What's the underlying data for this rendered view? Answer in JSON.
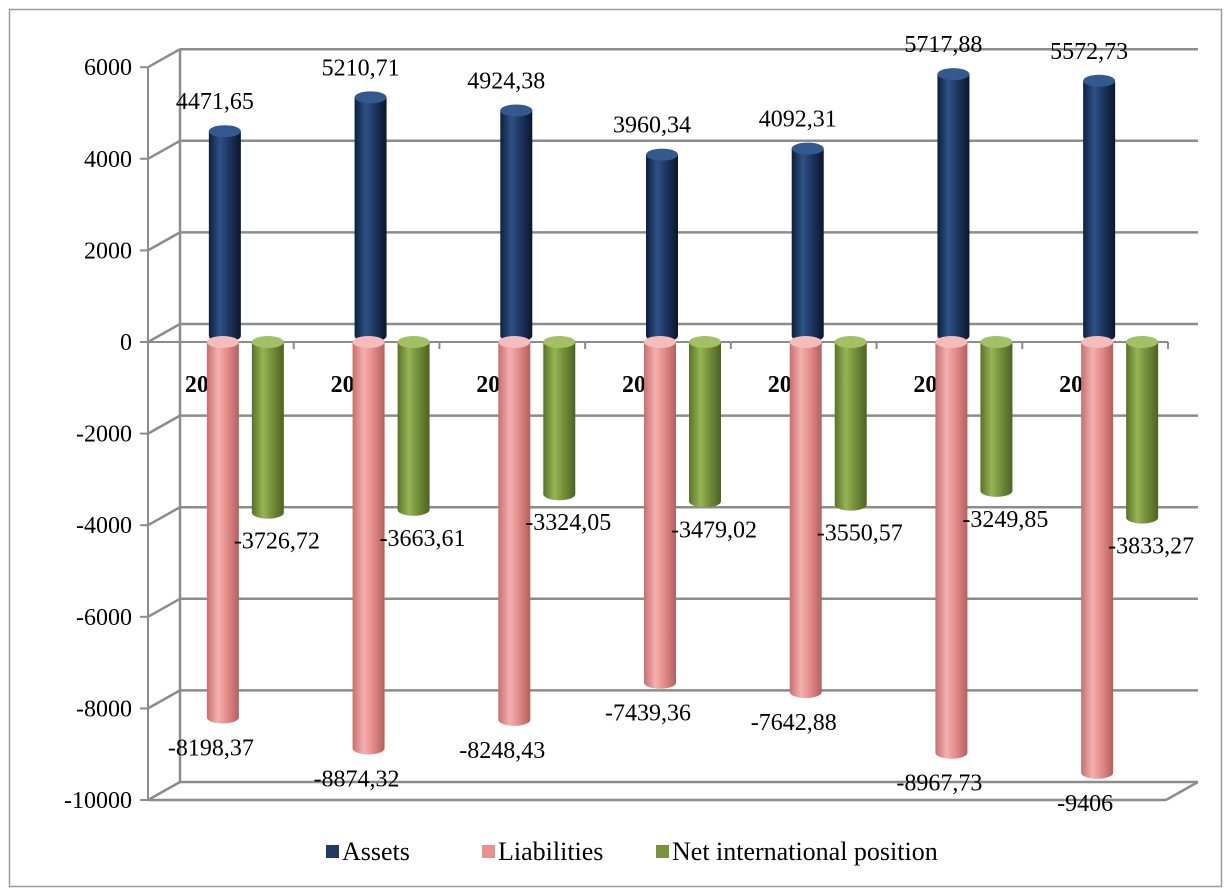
{
  "chart_data": {
    "type": "bar",
    "categories": [
      "2012",
      "2013",
      "2014",
      "2015",
      "2016",
      "2017",
      "2018"
    ],
    "series": [
      {
        "name": "Assets",
        "values": [
          4471.65,
          5210.71,
          4924.38,
          3960.34,
          4092.31,
          5717.88,
          5572.73
        ],
        "labels": [
          "4471,65",
          "5210,71",
          "4924,38",
          "3960,34",
          "4092,31",
          "5717,88",
          "5572,73"
        ],
        "color": "#1F3864"
      },
      {
        "name": "Liabilities",
        "values": [
          -8198.37,
          -8874.32,
          -8248.43,
          -7439.36,
          -7642.88,
          -8967.73,
          -9406
        ],
        "labels": [
          "-8198,37",
          "-8874,32",
          "-8248,43",
          "-7439,36",
          "-7642,88",
          "-8967,73",
          "-9406"
        ],
        "color": "#E6908F"
      },
      {
        "name": "Net international position",
        "values": [
          -3726.72,
          -3663.61,
          -3324.05,
          -3479.02,
          -3550.57,
          -3249.85,
          -3833.27
        ],
        "labels": [
          "-3726,72",
          "-3663,61",
          "-3324,05",
          "-3479,02",
          "-3550,57",
          "-3249,85",
          "-3833,27"
        ],
        "color": "#77933C"
      }
    ],
    "ylim": [
      -10000,
      6000
    ],
    "yticks": [
      6000,
      4000,
      2000,
      0,
      -2000,
      -4000,
      -6000,
      -8000,
      -10000
    ],
    "grid": true,
    "legend_position": "bottom"
  }
}
